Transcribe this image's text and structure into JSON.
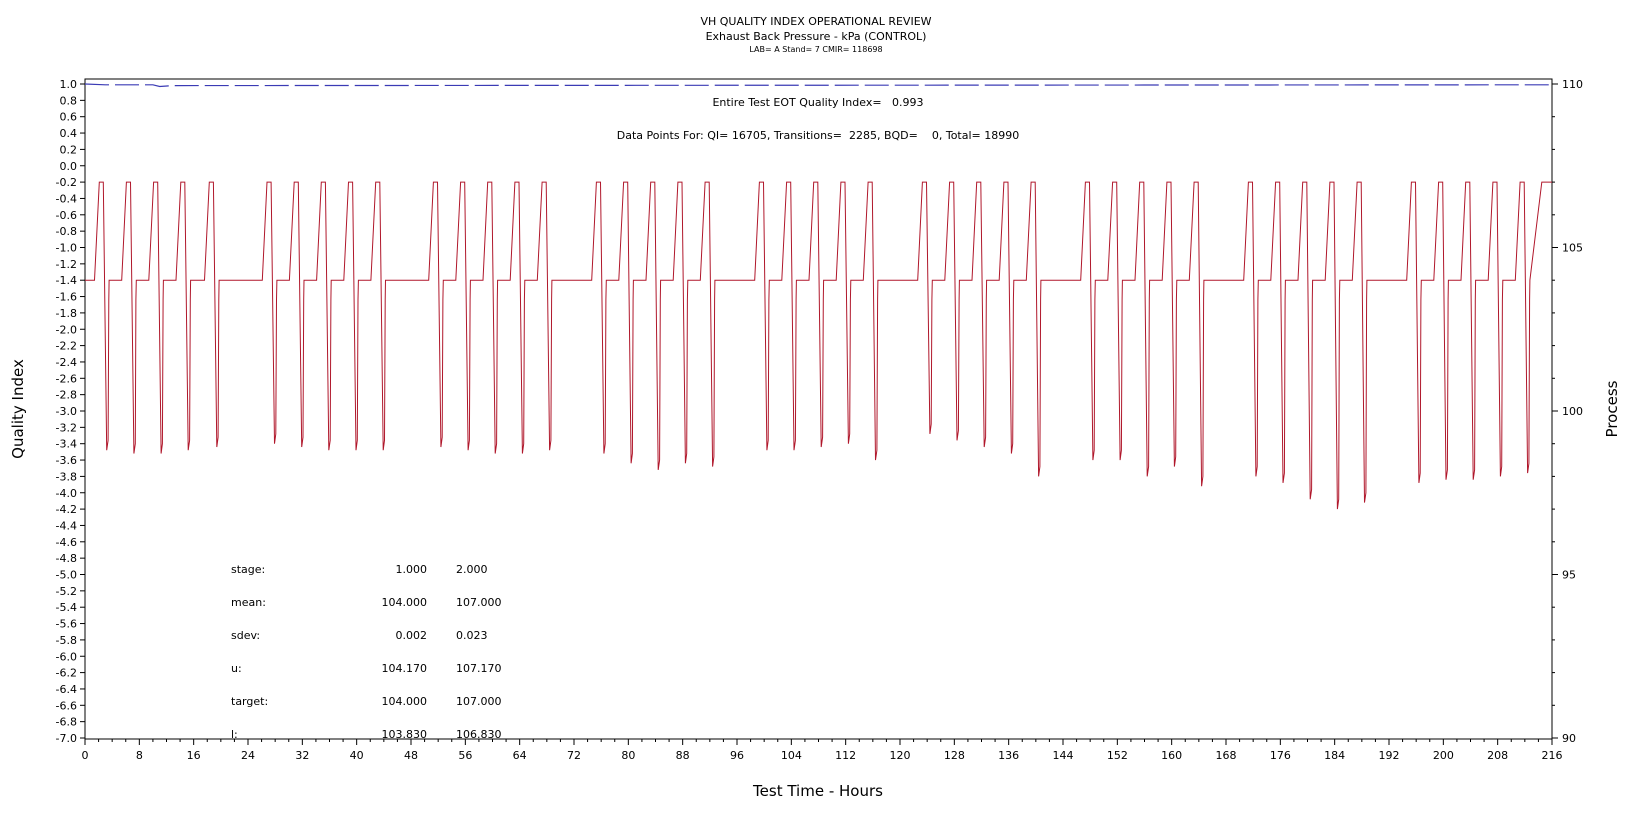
{
  "chart_data": {
    "type": "line",
    "title": "VH QUALITY INDEX OPERATIONAL REVIEW",
    "subtitle": "Exhaust Back Pressure - kPa (CONTROL)",
    "subtitle2": "LAB= A Stand= 7 CMIR= 118698",
    "xlabel": "Test Time - Hours",
    "ylabel": "Quality Index",
    "y2label": "Process",
    "xlim": [
      0,
      216
    ],
    "ylim": [
      -7.0,
      1.0
    ],
    "y2lim": [
      90,
      110
    ],
    "x_ticks": [
      "0",
      "8",
      "16",
      "24",
      "32",
      "40",
      "48",
      "56",
      "64",
      "72",
      "80",
      "88",
      "96",
      "104",
      "112",
      "120",
      "128",
      "136",
      "144",
      "152",
      "160",
      "168",
      "176",
      "184",
      "192",
      "200",
      "208",
      "216"
    ],
    "y_ticks": [
      "1.0",
      "0.8",
      "0.6",
      "0.4",
      "0.2",
      "0.0",
      "-0.2",
      "-0.4",
      "-0.6",
      "-0.8",
      "-1.0",
      "-1.2",
      "-1.4",
      "-1.6",
      "-1.8",
      "-2.0",
      "-2.2",
      "-2.4",
      "-2.6",
      "-2.8",
      "-3.0",
      "-3.2",
      "-3.4",
      "-3.6",
      "-3.8",
      "-4.0",
      "-4.2",
      "-4.4",
      "-4.6",
      "-4.8",
      "-5.0",
      "-5.2",
      "-5.4",
      "-5.6",
      "-5.8",
      "-6.0",
      "-6.2",
      "-6.4",
      "-6.6",
      "-6.8",
      "-7.0"
    ],
    "y2_ticks": [
      "110",
      "105",
      "100",
      "95",
      "90"
    ],
    "annotations": {
      "quality_index": "Entire Test EOT Quality Index=   0.993",
      "data_points": "Data Points For: QI= 16705, Transitions=  2285, BQD=    0, Total= 18990"
    },
    "stats_table": [
      {
        "label": "stage:",
        "v1": "1.000",
        "v2": "2.000"
      },
      {
        "label": "mean:",
        "v1": "104.000",
        "v2": "107.000"
      },
      {
        "label": "sdev:",
        "v1": "0.002",
        "v2": "0.023"
      },
      {
        "label": "u:",
        "v1": "104.170",
        "v2": "107.170"
      },
      {
        "label": "target:",
        "v1": "104.000",
        "v2": "107.000"
      },
      {
        "label": "l:",
        "v1": "103.830",
        "v2": "106.830"
      }
    ],
    "series": [
      {
        "axis": "left",
        "color": "#3b3bb5",
        "style": "dashed",
        "points": [
          [
            0,
            1.0
          ],
          [
            3,
            0.99
          ],
          [
            10,
            0.99
          ],
          [
            11,
            0.97
          ],
          [
            13,
            0.98
          ],
          [
            216,
            0.99
          ]
        ]
      },
      {
        "axis": "right",
        "color": "#b0172b",
        "style": "solid",
        "base": 104,
        "peak": 107,
        "cycles": [
          {
            "t": 2.3,
            "d": 98.8
          },
          {
            "t": 6.3,
            "d": 98.7
          },
          {
            "t": 10.3,
            "d": 98.7
          },
          {
            "t": 14.3,
            "d": 98.8
          },
          {
            "t": 18.5,
            "d": 98.9
          },
          {
            "t": 27.0,
            "d": 99.0
          },
          {
            "t": 31.0,
            "d": 98.9
          },
          {
            "t": 35.0,
            "d": 98.8
          },
          {
            "t": 39.0,
            "d": 98.8
          },
          {
            "t": 43.0,
            "d": 98.8
          },
          {
            "t": 51.5,
            "d": 98.9
          },
          {
            "t": 55.5,
            "d": 98.8
          },
          {
            "t": 59.5,
            "d": 98.7
          },
          {
            "t": 63.5,
            "d": 98.7
          },
          {
            "t": 67.5,
            "d": 98.8
          },
          {
            "t": 75.5,
            "d": 98.7
          },
          {
            "t": 79.5,
            "d": 98.4
          },
          {
            "t": 83.5,
            "d": 98.2
          },
          {
            "t": 87.5,
            "d": 98.4
          },
          {
            "t": 91.5,
            "d": 98.3
          },
          {
            "t": 99.5,
            "d": 98.8
          },
          {
            "t": 103.5,
            "d": 98.8
          },
          {
            "t": 107.5,
            "d": 98.9
          },
          {
            "t": 111.5,
            "d": 99.0
          },
          {
            "t": 115.5,
            "d": 98.5
          },
          {
            "t": 123.5,
            "d": 99.3
          },
          {
            "t": 127.5,
            "d": 99.1
          },
          {
            "t": 131.5,
            "d": 98.9
          },
          {
            "t": 135.5,
            "d": 98.7
          },
          {
            "t": 139.5,
            "d": 98.0
          },
          {
            "t": 147.5,
            "d": 98.5
          },
          {
            "t": 151.5,
            "d": 98.5
          },
          {
            "t": 155.5,
            "d": 98.0
          },
          {
            "t": 159.5,
            "d": 98.3
          },
          {
            "t": 163.5,
            "d": 97.7
          },
          {
            "t": 171.5,
            "d": 98.0
          },
          {
            "t": 175.5,
            "d": 97.8
          },
          {
            "t": 179.5,
            "d": 97.3
          },
          {
            "t": 183.5,
            "d": 97.0
          },
          {
            "t": 187.5,
            "d": 97.2
          },
          {
            "t": 195.5,
            "d": 97.8
          },
          {
            "t": 199.5,
            "d": 97.9
          },
          {
            "t": 203.5,
            "d": 97.9
          },
          {
            "t": 207.5,
            "d": 98.0
          },
          {
            "t": 211.5,
            "d": 98.1
          }
        ]
      }
    ]
  }
}
